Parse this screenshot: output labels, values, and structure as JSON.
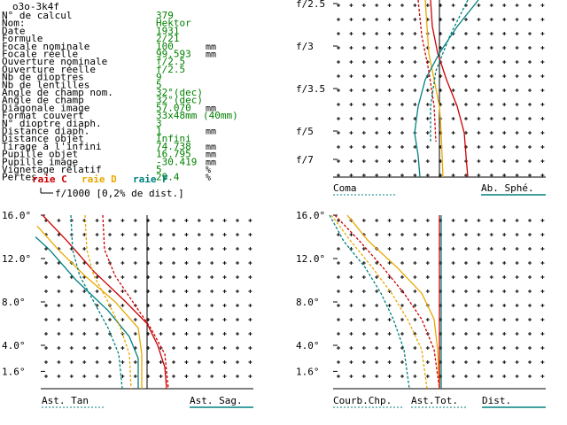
{
  "title": "o3o-3k4f",
  "params": [
    {
      "label": "N° de calcul",
      "value": "379",
      "unit": ""
    },
    {
      "label": "Nom:",
      "value": "Hektor",
      "unit": ""
    },
    {
      "label": "Date",
      "value": "1931",
      "unit": ""
    },
    {
      "label": "Formule",
      "value": "2/21",
      "unit": ""
    },
    {
      "label": "Focale nominale",
      "value": "100",
      "unit": "mm"
    },
    {
      "label": "Focale réelle",
      "value": "99.593",
      "unit": "mm"
    },
    {
      "label": "Ouverture nominale",
      "value": "f/2.5",
      "unit": ""
    },
    {
      "label": "Ouverture réelle",
      "value": "f/2.5",
      "unit": ""
    },
    {
      "label": "Nb de dioptres",
      "value": "9",
      "unit": ""
    },
    {
      "label": "Nb de lentilles",
      "value": "5",
      "unit": ""
    },
    {
      "label": "Angle de champ nom.",
      "value": "32°(dec)",
      "unit": ""
    },
    {
      "label": "Angle de champ",
      "value": "32°(dec)",
      "unit": ""
    },
    {
      "label": "Diagonale image",
      "value": "57.070",
      "unit": "mm"
    },
    {
      "label": "Format couvert",
      "value": "33x48mm (40mm)",
      "unit": ""
    },
    {
      "label": "N° dioptre diaph.",
      "value": "3",
      "unit": ""
    },
    {
      "label": "Distance diaph.",
      "value": "1",
      "unit": "mm"
    },
    {
      "label": "Distance objet",
      "value": "Infini",
      "unit": ""
    },
    {
      "label": "Tirage à l'infini",
      "value": "74.738",
      "unit": "mm"
    },
    {
      "label": "Pupille objet",
      "value": "16.795",
      "unit": "mm"
    },
    {
      "label": "Pupille image",
      "value": "-30.419",
      "unit": "mm"
    },
    {
      "label": "Vignetage relatif",
      "value": "5",
      "unit": "%"
    },
    {
      "label": "Pertes",
      "value": "29.4",
      "unit": "%"
    }
  ],
  "legend": {
    "items": [
      {
        "label": "raie C",
        "color": "#cc0000"
      },
      {
        "label": "raie D",
        "color": "#e8a800"
      },
      {
        "label": "raie F",
        "color": "#008080"
      }
    ],
    "scale_note": "f/1000 [0,2% de dist.]"
  },
  "colors": {
    "C": "#cc0000",
    "D": "#e8a800",
    "F": "#008080",
    "text_green": "#008000",
    "ink": "#000000"
  },
  "chart_data": [
    {
      "type": "line",
      "id": "spherical",
      "footer_left": "Coma",
      "footer_right": "Ab. Sphé.",
      "y_tick_labels": [
        "f/2.5",
        "f/3",
        "f/3.5",
        "f/5",
        "f/7"
      ],
      "x_unit": "mm",
      "xlim": [
        -0.6,
        0.6
      ],
      "series": [
        {
          "name": "raie C",
          "line": "C",
          "style": "solid",
          "points": [
            [
              -0.05,
              0
            ],
            [
              -0.04,
              0.15
            ],
            [
              -0.01,
              0.3
            ],
            [
              0.04,
              0.45
            ],
            [
              0.1,
              0.6
            ],
            [
              0.14,
              0.75
            ],
            [
              0.15,
              0.88
            ],
            [
              0.16,
              1
            ]
          ]
        },
        {
          "name": "raie D",
          "line": "D",
          "style": "solid",
          "points": [
            [
              -0.08,
              0
            ],
            [
              -0.07,
              0.15
            ],
            [
              -0.06,
              0.3
            ],
            [
              -0.03,
              0.45
            ],
            [
              0.0,
              0.6
            ],
            [
              0.01,
              0.75
            ],
            [
              0.015,
              0.88
            ],
            [
              0.02,
              1
            ]
          ]
        },
        {
          "name": "raie F",
          "line": "F",
          "style": "solid",
          "points": [
            [
              0.22,
              0
            ],
            [
              0.1,
              0.15
            ],
            [
              0.0,
              0.3
            ],
            [
              -0.08,
              0.45
            ],
            [
              -0.12,
              0.6
            ],
            [
              -0.14,
              0.75
            ],
            [
              -0.12,
              0.88
            ],
            [
              -0.11,
              1
            ]
          ]
        },
        {
          "name": "coma C",
          "line": "C",
          "style": "dashed",
          "points": [
            [
              -0.12,
              0
            ],
            [
              -0.1,
              0.2
            ],
            [
              -0.06,
              0.4
            ],
            [
              -0.03,
              0.6
            ],
            [
              -0.02,
              0.8
            ]
          ]
        },
        {
          "name": "coma F",
          "line": "F",
          "style": "dashed",
          "points": [
            [
              0.16,
              0
            ],
            [
              0.06,
              0.2
            ],
            [
              -0.02,
              0.4
            ],
            [
              -0.05,
              0.6
            ],
            [
              -0.05,
              0.8
            ]
          ]
        }
      ]
    },
    {
      "type": "line",
      "id": "astigmatism",
      "footer_left": "Ast. Tan",
      "footer_right": "Ast. Sag.",
      "y_tick_labels": [
        "16.0°",
        "12.0°",
        "8.0°",
        "4.0°",
        "1.6°"
      ],
      "y_tick_values": [
        16,
        12,
        8,
        4,
        1.6
      ],
      "ylim": [
        0,
        16
      ],
      "x_unit": "mm",
      "xlim": [
        -0.6,
        0.6
      ],
      "series": [
        {
          "name": "Tan C",
          "line": "C",
          "style": "solid",
          "points": [
            [
              -0.59,
              16
            ],
            [
              -0.45,
              13.6
            ],
            [
              -0.3,
              10.8
            ],
            [
              -0.12,
              8
            ],
            [
              0.0,
              6
            ],
            [
              0.06,
              4
            ],
            [
              0.1,
              2
            ],
            [
              0.11,
              0
            ]
          ]
        },
        {
          "name": "Tan D",
          "line": "D",
          "style": "solid",
          "points": [
            [
              -0.62,
              15
            ],
            [
              -0.5,
              12.8
            ],
            [
              -0.35,
              10.4
            ],
            [
              -0.18,
              8
            ],
            [
              -0.05,
              5.6
            ],
            [
              -0.03,
              3.2
            ],
            [
              -0.03,
              1.6
            ],
            [
              -0.03,
              0
            ]
          ]
        },
        {
          "name": "Tan F",
          "line": "F",
          "style": "solid",
          "points": [
            [
              -0.63,
              14
            ],
            [
              -0.55,
              12.8
            ],
            [
              -0.4,
              10
            ],
            [
              -0.22,
              7.2
            ],
            [
              -0.1,
              4.8
            ],
            [
              -0.05,
              2.8
            ],
            [
              -0.05,
              0
            ]
          ]
        },
        {
          "name": "Sag C",
          "line": "C",
          "style": "dashed",
          "points": [
            [
              -0.25,
              16
            ],
            [
              -0.24,
              12.8
            ],
            [
              -0.18,
              10.4
            ],
            [
              -0.08,
              8
            ],
            [
              0.02,
              5.6
            ],
            [
              0.1,
              3.2
            ],
            [
              0.12,
              0
            ]
          ]
        },
        {
          "name": "Sag D",
          "line": "D",
          "style": "dashed",
          "points": [
            [
              -0.35,
              16
            ],
            [
              -0.34,
              12.8
            ],
            [
              -0.3,
              10.4
            ],
            [
              -0.22,
              8
            ],
            [
              -0.15,
              5.6
            ],
            [
              -0.1,
              3.2
            ],
            [
              -0.09,
              0
            ]
          ]
        },
        {
          "name": "Sag F",
          "line": "F",
          "style": "dashed",
          "points": [
            [
              -0.43,
              16
            ],
            [
              -0.42,
              12.8
            ],
            [
              -0.38,
              10.4
            ],
            [
              -0.3,
              8
            ],
            [
              -0.22,
              5.6
            ],
            [
              -0.16,
              3.2
            ],
            [
              -0.14,
              0
            ]
          ]
        }
      ]
    },
    {
      "type": "line",
      "id": "field",
      "footer_labels": [
        "Courb.Chp.",
        "Ast.Tot.",
        "Dist."
      ],
      "y_tick_labels": [
        "16.0°",
        "12.0°",
        "8.0°",
        "4.0°",
        "1.6°"
      ],
      "y_tick_values": [
        16,
        12,
        8,
        4,
        1.6
      ],
      "ylim": [
        0,
        16
      ],
      "x_unit": "mm",
      "xlim": [
        -0.6,
        0.6
      ],
      "series": [
        {
          "name": "Courb C",
          "line": "C",
          "style": "dashed",
          "points": [
            [
              -0.59,
              16
            ],
            [
              -0.45,
              13.6
            ],
            [
              -0.32,
              11.2
            ],
            [
              -0.2,
              8.8
            ],
            [
              -0.1,
              6.4
            ],
            [
              -0.03,
              3.6
            ],
            [
              0.0,
              0
            ]
          ]
        },
        {
          "name": "Courb D",
          "line": "D",
          "style": "dashed",
          "points": [
            [
              -0.61,
              16
            ],
            [
              -0.5,
              13.6
            ],
            [
              -0.38,
              11.2
            ],
            [
              -0.27,
              8.8
            ],
            [
              -0.18,
              6.4
            ],
            [
              -0.1,
              3.6
            ],
            [
              -0.07,
              0
            ]
          ]
        },
        {
          "name": "Courb F",
          "line": "F",
          "style": "dashed",
          "points": [
            [
              -0.62,
              16
            ],
            [
              -0.54,
              13.6
            ],
            [
              -0.42,
              11.2
            ],
            [
              -0.33,
              8.8
            ],
            [
              -0.26,
              6.4
            ],
            [
              -0.2,
              3.6
            ],
            [
              -0.17,
              0
            ]
          ]
        },
        {
          "name": "Dist. D",
          "line": "D",
          "style": "solid",
          "points": [
            [
              -0.52,
              16
            ],
            [
              -0.4,
              13.6
            ],
            [
              -0.24,
              11.2
            ],
            [
              -0.1,
              8.8
            ],
            [
              -0.03,
              6.4
            ],
            [
              -0.01,
              3.6
            ],
            [
              0.0,
              0
            ]
          ]
        },
        {
          "name": "Ast.Tot. C",
          "line": "C",
          "style": "solid",
          "points": [
            [
              0.0,
              16
            ],
            [
              0.0,
              0
            ]
          ]
        },
        {
          "name": "Ast.Tot. F",
          "line": "F",
          "style": "solid",
          "points": [
            [
              0.01,
              16
            ],
            [
              0.01,
              0
            ]
          ]
        }
      ]
    }
  ]
}
